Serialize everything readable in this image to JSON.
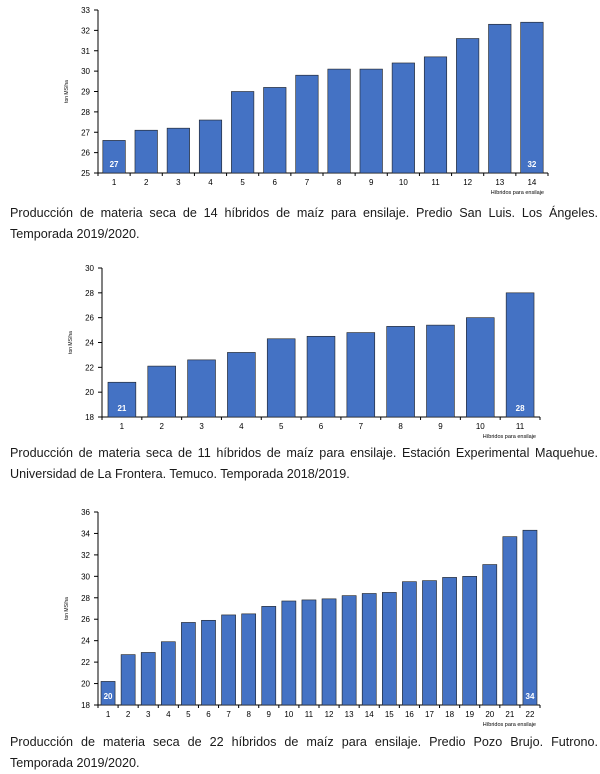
{
  "colors": {
    "bar": "#4472C4",
    "bar_stroke": "#1f1f1f",
    "axis": "#000000",
    "bar_label": "#ffffff"
  },
  "charts": [
    {
      "caption": "Producción de materia seca de 14 híbridos de maíz para ensilaje. Predio San Luis. Los Ángeles. Temporada 2019/2020."
    },
    {
      "caption": "Producción de materia seca de 11 híbridos de maíz para ensilaje. Estación Experimental Maquehue. Universidad de La Frontera. Temuco. Temporada 2018/2019."
    },
    {
      "caption": "Producción de materia seca de 22 híbridos de maíz para ensilaje. Predio Pozo Brujo. Futrono. Temporada 2019/2020."
    }
  ],
  "chart_data": [
    {
      "type": "bar",
      "title": "",
      "xlabel": "Híbridos para ensilaje",
      "ylabel": "ton MS/ha",
      "categories": [
        "1",
        "2",
        "3",
        "4",
        "5",
        "6",
        "7",
        "8",
        "9",
        "10",
        "11",
        "12",
        "13",
        "14"
      ],
      "values": [
        26.6,
        27.1,
        27.2,
        27.6,
        29.0,
        29.2,
        29.8,
        30.1,
        30.1,
        30.4,
        30.7,
        31.6,
        32.3,
        32.4
      ],
      "ylim": [
        25,
        33
      ],
      "yticks": [
        25,
        26,
        27,
        28,
        29,
        30,
        31,
        32,
        33
      ],
      "bar_labels": [
        {
          "index": 0,
          "text": "27"
        },
        {
          "index": 13,
          "text": "32"
        }
      ],
      "grid": false
    },
    {
      "type": "bar",
      "title": "",
      "xlabel": "Híbridos para ensilaje",
      "ylabel": "ton MS/ha",
      "categories": [
        "1",
        "2",
        "3",
        "4",
        "5",
        "6",
        "7",
        "8",
        "9",
        "10",
        "11"
      ],
      "values": [
        20.8,
        22.1,
        22.6,
        23.2,
        24.3,
        24.5,
        24.8,
        25.3,
        25.4,
        26.0,
        28.0
      ],
      "ylim": [
        18,
        30
      ],
      "yticks": [
        18,
        20,
        22,
        24,
        26,
        28,
        30
      ],
      "bar_labels": [
        {
          "index": 0,
          "text": "21"
        },
        {
          "index": 10,
          "text": "28"
        }
      ],
      "grid": false
    },
    {
      "type": "bar",
      "title": "",
      "xlabel": "Híbridos para ensilaje",
      "ylabel": "ton MS/ha",
      "categories": [
        "1",
        "2",
        "3",
        "4",
        "5",
        "6",
        "7",
        "8",
        "9",
        "10",
        "11",
        "12",
        "13",
        "14",
        "15",
        "16",
        "17",
        "18",
        "19",
        "20",
        "21",
        "22"
      ],
      "values": [
        20.2,
        22.7,
        22.9,
        23.9,
        25.7,
        25.9,
        26.4,
        26.5,
        27.2,
        27.7,
        27.8,
        27.9,
        28.2,
        28.4,
        28.5,
        29.5,
        29.6,
        29.9,
        30.0,
        31.1,
        33.7,
        34.3
      ],
      "ylim": [
        18,
        36
      ],
      "yticks": [
        18,
        20,
        22,
        24,
        26,
        28,
        30,
        32,
        34,
        36
      ],
      "bar_labels": [
        {
          "index": 0,
          "text": "20"
        },
        {
          "index": 21,
          "text": "34"
        }
      ],
      "grid": false
    }
  ]
}
